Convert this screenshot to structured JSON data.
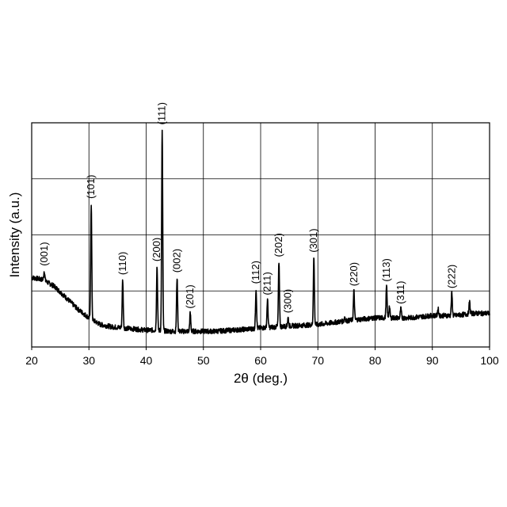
{
  "chart_data": {
    "type": "line",
    "title": "",
    "xlabel": "2θ (deg.)",
    "ylabel": "Intensity (a.u.)",
    "xlim": [
      20,
      100
    ],
    "ylim": [
      0,
      1
    ],
    "xticks": [
      20,
      30,
      40,
      50,
      60,
      70,
      80,
      90,
      100
    ],
    "grid": true,
    "legend": "none",
    "line_color": "#000000",
    "baseline": [
      [
        20,
        0.31
      ],
      [
        22,
        0.3
      ],
      [
        24,
        0.27
      ],
      [
        26,
        0.22
      ],
      [
        28,
        0.17
      ],
      [
        30,
        0.13
      ],
      [
        32,
        0.1
      ],
      [
        34,
        0.09
      ],
      [
        36,
        0.085
      ],
      [
        38,
        0.08
      ],
      [
        40,
        0.075
      ],
      [
        42,
        0.075
      ],
      [
        44,
        0.07
      ],
      [
        46,
        0.07
      ],
      [
        48,
        0.07
      ],
      [
        50,
        0.07
      ],
      [
        52,
        0.07
      ],
      [
        55,
        0.075
      ],
      [
        58,
        0.08
      ],
      [
        60,
        0.085
      ],
      [
        63,
        0.09
      ],
      [
        66,
        0.095
      ],
      [
        70,
        0.1
      ],
      [
        73,
        0.11
      ],
      [
        76,
        0.12
      ],
      [
        80,
        0.13
      ],
      [
        83,
        0.13
      ],
      [
        86,
        0.13
      ],
      [
        90,
        0.14
      ],
      [
        94,
        0.14
      ],
      [
        97,
        0.15
      ],
      [
        100,
        0.15
      ]
    ],
    "peaks": [
      {
        "label": "(001)",
        "x": 22.2,
        "y": 0.34
      },
      {
        "label": "(101)",
        "x": 30.4,
        "y": 0.64
      },
      {
        "label": "(110)",
        "x": 35.9,
        "y": 0.3
      },
      {
        "label": "(200)",
        "x": 41.9,
        "y": 0.36
      },
      {
        "label": "(111)",
        "x": 42.8,
        "y": 0.97
      },
      {
        "label": "(002)",
        "x": 45.4,
        "y": 0.31
      },
      {
        "label": "(201)",
        "x": 47.7,
        "y": 0.15
      },
      {
        "label": "(112)",
        "x": 59.2,
        "y": 0.26
      },
      {
        "label": "(211)",
        "x": 61.2,
        "y": 0.21
      },
      {
        "label": "(202)",
        "x": 63.2,
        "y": 0.38
      },
      {
        "label": "(300)",
        "x": 64.8,
        "y": 0.13
      },
      {
        "label": "(301)",
        "x": 69.3,
        "y": 0.4
      },
      {
        "label": "(220)",
        "x": 76.3,
        "y": 0.25
      },
      {
        "label": "(113)",
        "x": 82.0,
        "y": 0.27
      },
      {
        "label": "(311)",
        "x": 84.5,
        "y": 0.17
      },
      {
        "label": "(222)",
        "x": 93.4,
        "y": 0.24
      }
    ],
    "minor_peaks": [
      {
        "x": 82.5,
        "y": 0.18
      },
      {
        "x": 74.7,
        "y": 0.135
      },
      {
        "x": 91.0,
        "y": 0.17
      },
      {
        "x": 96.5,
        "y": 0.2
      }
    ]
  }
}
